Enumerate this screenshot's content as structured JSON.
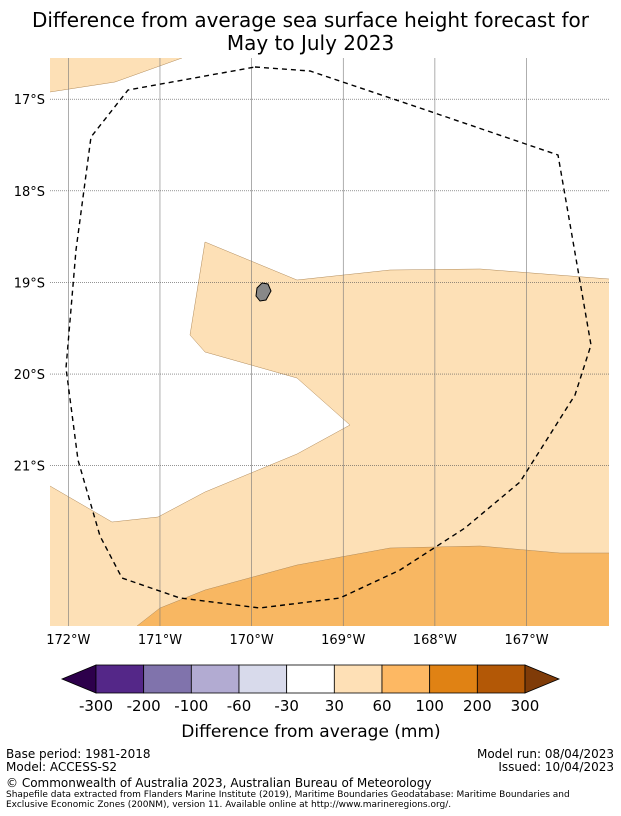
{
  "title": {
    "line1": "Difference from average sea surface height forecast for",
    "line2": "May to July 2023"
  },
  "map": {
    "lat_labels": [
      "17°S",
      "18°S",
      "19°S",
      "20°S",
      "21°S"
    ],
    "lon_labels": [
      "172°W",
      "171°W",
      "170°W",
      "169°W",
      "168°W",
      "167°W"
    ],
    "lon_range": [
      -172.2,
      -166.1
    ],
    "lat_range": [
      -16.55,
      -22.75
    ],
    "category_colors": {
      "30_60": "#fde0b6",
      "60_100": "#f8b762",
      "neutral": "#ffffff"
    },
    "land_color": "#888888",
    "eez_line_style": "dashed"
  },
  "colorbar": {
    "ticks": [
      "-300",
      "-200",
      "-100",
      "-60",
      "-30",
      "30",
      "60",
      "100",
      "200",
      "300"
    ],
    "colors": [
      "#2d004b",
      "#542788",
      "#8073ac",
      "#b2abd2",
      "#d8daeb",
      "#ffffff",
      "#fee0b6",
      "#fdb863",
      "#e08214",
      "#b35806",
      "#7f3b08"
    ],
    "label": "Difference from average (mm)"
  },
  "footer": {
    "base_period": "Base period: 1981-2018",
    "model": "Model: ACCESS-S2",
    "model_run": "Model run: 08/04/2023",
    "issued": "Issued: 10/04/2023",
    "copyright": "© Commonwealth of Australia 2023, Australian Bureau of Meteorology",
    "shapefile_line1": "Shapefile data extracted from Flanders Marine Institute (2019), Maritime Boundaries Geodatabase: Maritime Boundaries and",
    "shapefile_line2": "Exclusive Economic Zones (200NM), version 11. Available online at http://www.marineregions.org/."
  }
}
